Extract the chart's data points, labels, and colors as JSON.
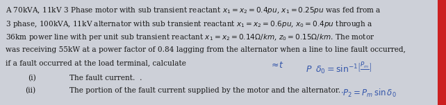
{
  "background_color": "#cdd0d8",
  "text_color": "#1a1a1a",
  "figsize": [
    6.42,
    1.52
  ],
  "dpi": 100,
  "line1": "A 70kVA, 11kV 3 Phase motor with sub transient reactant $x_1 = x_2 = 0.4pu$, $\\mathit{x}_1 = 0.25pu$ was fed from a",
  "line2": "3 phase, 100kVA, 11kV alternator with sub transient reactant $x_1 = x_2 = 0.6pu$, $x_0 = 0.4pu$ through a",
  "line3": "36km power line with per unit sub transient reactant $x_1 = x_2 = 0.14\\Omega/km$, $z_0 = 0.15\\Omega/km$. The motor",
  "line4": "was receiving 55kW at a power factor of 0.84 lagging from the alternator when a line to line fault occurred,",
  "line5": "if a fault occurred at the load terminal, calculate",
  "num_i": "(i)",
  "text_i": "The fault current.  .",
  "num_ii": "(ii)",
  "text_ii": "The portion of the fault current supplied by the motor and the alternator.",
  "annot1": "$P\\;\\;\\delta_0 = \\sin^{-1}\\!\\left[\\dfrac{P_m}{\\;\\;}\\right]$",
  "annot2": "$P_2 = P_m\\sin\\delta_0$",
  "red_color": "#cc2020",
  "blue_annot_color": "#3355aa",
  "main_fontsize": 7.6,
  "item_fontsize": 7.6,
  "annot_fontsize": 8.5
}
